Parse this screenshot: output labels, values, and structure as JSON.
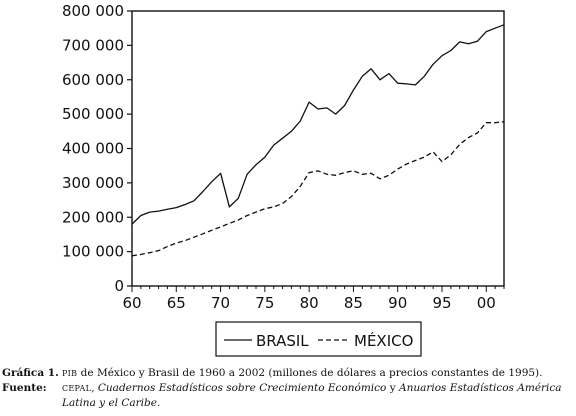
{
  "chart_data": {
    "type": "line",
    "title": "",
    "xlabel": "",
    "ylabel": "",
    "x": [
      1960,
      1961,
      1962,
      1963,
      1964,
      1965,
      1966,
      1967,
      1968,
      1969,
      1970,
      1971,
      1972,
      1973,
      1974,
      1975,
      1976,
      1977,
      1978,
      1979,
      1980,
      1981,
      1982,
      1983,
      1984,
      1985,
      1986,
      1987,
      1988,
      1989,
      1990,
      1991,
      1992,
      1993,
      1994,
      1995,
      1996,
      1997,
      1998,
      1999,
      2000,
      2001,
      2002
    ],
    "xlim": [
      1960,
      2002
    ],
    "ylim": [
      0,
      800000
    ],
    "x_tick_values": [
      1960,
      1965,
      1970,
      1975,
      1980,
      1985,
      1990,
      1995,
      2000
    ],
    "x_tick_labels": [
      "60",
      "65",
      "70",
      "75",
      "80",
      "85",
      "90",
      "95",
      "00"
    ],
    "y_tick_values": [
      0,
      100000,
      200000,
      300000,
      400000,
      500000,
      600000,
      700000,
      800000
    ],
    "y_tick_labels": [
      "0",
      "100 000",
      "200 000",
      "300 000",
      "400 000",
      "500 000",
      "600 000",
      "700 000",
      "800 000"
    ],
    "grid": false,
    "legend_position": "bottom-center",
    "series": [
      {
        "name": "BRASIL",
        "style": "solid",
        "values": [
          180000,
          205000,
          215000,
          218000,
          223000,
          228000,
          237000,
          248000,
          275000,
          303000,
          328000,
          230000,
          255000,
          325000,
          353000,
          375000,
          410000,
          430000,
          450000,
          480000,
          535000,
          515000,
          518000,
          500000,
          525000,
          570000,
          610000,
          632000,
          600000,
          618000,
          590000,
          588000,
          585000,
          610000,
          645000,
          670000,
          685000,
          710000,
          705000,
          712000,
          740000,
          750000,
          760000
        ]
      },
      {
        "name": "MÉXICO",
        "style": "dashed",
        "values": [
          88000,
          92000,
          97000,
          103000,
          115000,
          125000,
          132000,
          142000,
          152000,
          162000,
          172000,
          182000,
          192000,
          205000,
          215000,
          225000,
          230000,
          240000,
          260000,
          290000,
          330000,
          335000,
          325000,
          322000,
          330000,
          335000,
          325000,
          328000,
          312000,
          322000,
          340000,
          355000,
          365000,
          375000,
          390000,
          362000,
          382000,
          412000,
          432000,
          445000,
          475000,
          475000,
          478000
        ]
      }
    ]
  },
  "colors": {
    "line": "#111111",
    "axis": "#111111"
  },
  "caption": {
    "grafica_label": "Gráfica 1.",
    "grafica_pib": "PIB",
    "grafica_text": " de México y Brasil de 1960 a 2002 (millones de dólares a precios constantes de 1995).",
    "fuente_label": "Fuente:",
    "fuente_cepal": "CEPAL",
    "fuente_comma": ", ",
    "fuente_italic1": "Cuadernos Estadísticos sobre Crecimiento Económico",
    "fuente_and": " y ",
    "fuente_italic2": "Anuarios Estadísticos América Latina y el Caribe",
    "fuente_end": "."
  }
}
